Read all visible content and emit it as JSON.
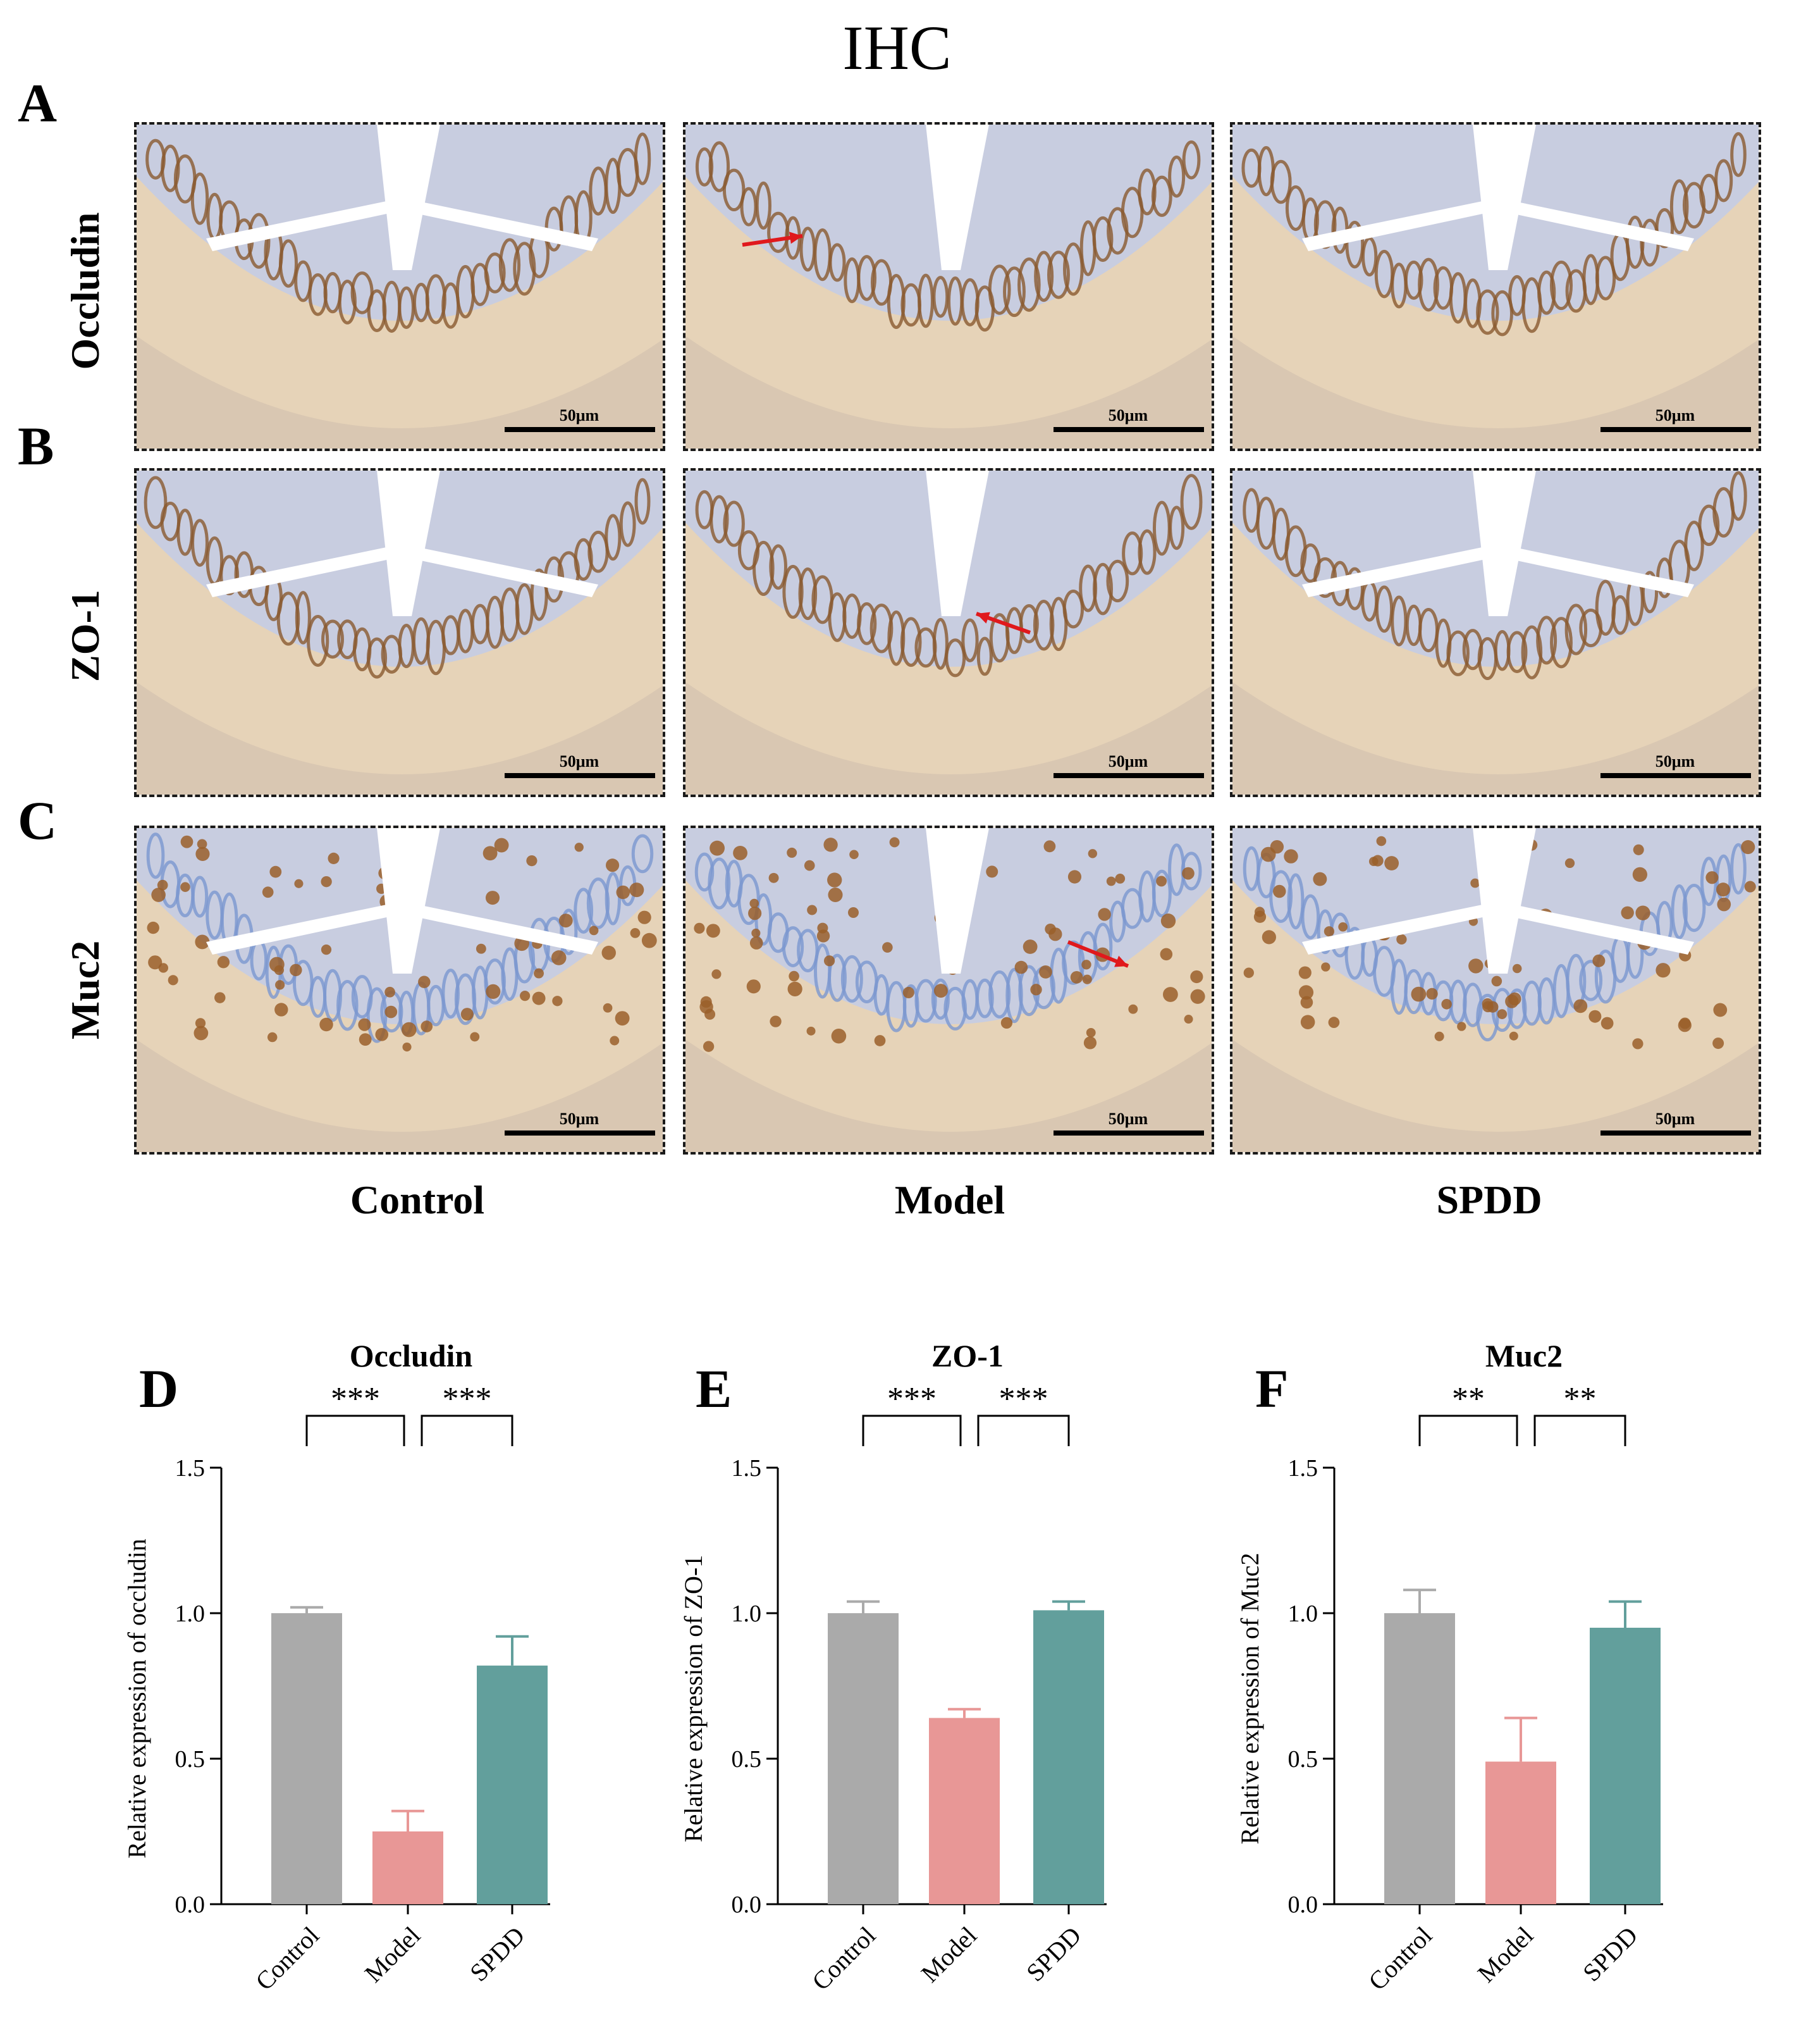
{
  "figure_title": "IHC",
  "panel_letters": {
    "a": "A",
    "b": "B",
    "c": "C",
    "d": "D",
    "e": "E",
    "f": "F"
  },
  "row_labels": [
    "Occludin",
    "ZO-1",
    "Muc2"
  ],
  "column_labels": [
    "Control",
    "Model",
    "SPDD"
  ],
  "scale_bar_label": "50μm",
  "colors": {
    "control": "#aaaaaa",
    "model": "#e89796",
    "spdd": "#629f9c",
    "arrow": "#e0191c",
    "tissue_blue": "#7b97cf",
    "tissue_brown": "#8a5a30",
    "tissue_tan": "#e6d3b8"
  },
  "chart_data": [
    {
      "id": "D",
      "type": "bar",
      "title": "Occludin",
      "categories": [
        "Control",
        "Model",
        "SPDD"
      ],
      "values": [
        1.0,
        0.25,
        0.82
      ],
      "errors": [
        0.02,
        0.07,
        0.1
      ],
      "ylabel": "Relative expression of occludin",
      "ylim": [
        0,
        1.5
      ],
      "yticks": [
        "0.0",
        "0.5",
        "1.0",
        "1.5"
      ],
      "significance": [
        {
          "pair": [
            0,
            1
          ],
          "label": "***"
        },
        {
          "pair": [
            1,
            2
          ],
          "label": "***"
        }
      ]
    },
    {
      "id": "E",
      "type": "bar",
      "title": "ZO-1",
      "categories": [
        "Control",
        "Model",
        "SPDD"
      ],
      "values": [
        1.0,
        0.64,
        1.01
      ],
      "errors": [
        0.04,
        0.03,
        0.03
      ],
      "ylabel": "Relative expression of ZO-1",
      "ylim": [
        0,
        1.5
      ],
      "yticks": [
        "0.0",
        "0.5",
        "1.0",
        "1.5"
      ],
      "significance": [
        {
          "pair": [
            0,
            1
          ],
          "label": "***"
        },
        {
          "pair": [
            1,
            2
          ],
          "label": "***"
        }
      ]
    },
    {
      "id": "F",
      "type": "bar",
      "title": "Muc2",
      "categories": [
        "Control",
        "Model",
        "SPDD"
      ],
      "values": [
        1.0,
        0.49,
        0.95
      ],
      "errors": [
        0.08,
        0.15,
        0.09
      ],
      "ylabel": "Relative expression of Muc2",
      "ylim": [
        0,
        1.5
      ],
      "yticks": [
        "0.0",
        "0.5",
        "1.0",
        "1.5"
      ],
      "significance": [
        {
          "pair": [
            0,
            1
          ],
          "label": "**"
        },
        {
          "pair": [
            1,
            2
          ],
          "label": "**"
        }
      ]
    }
  ]
}
